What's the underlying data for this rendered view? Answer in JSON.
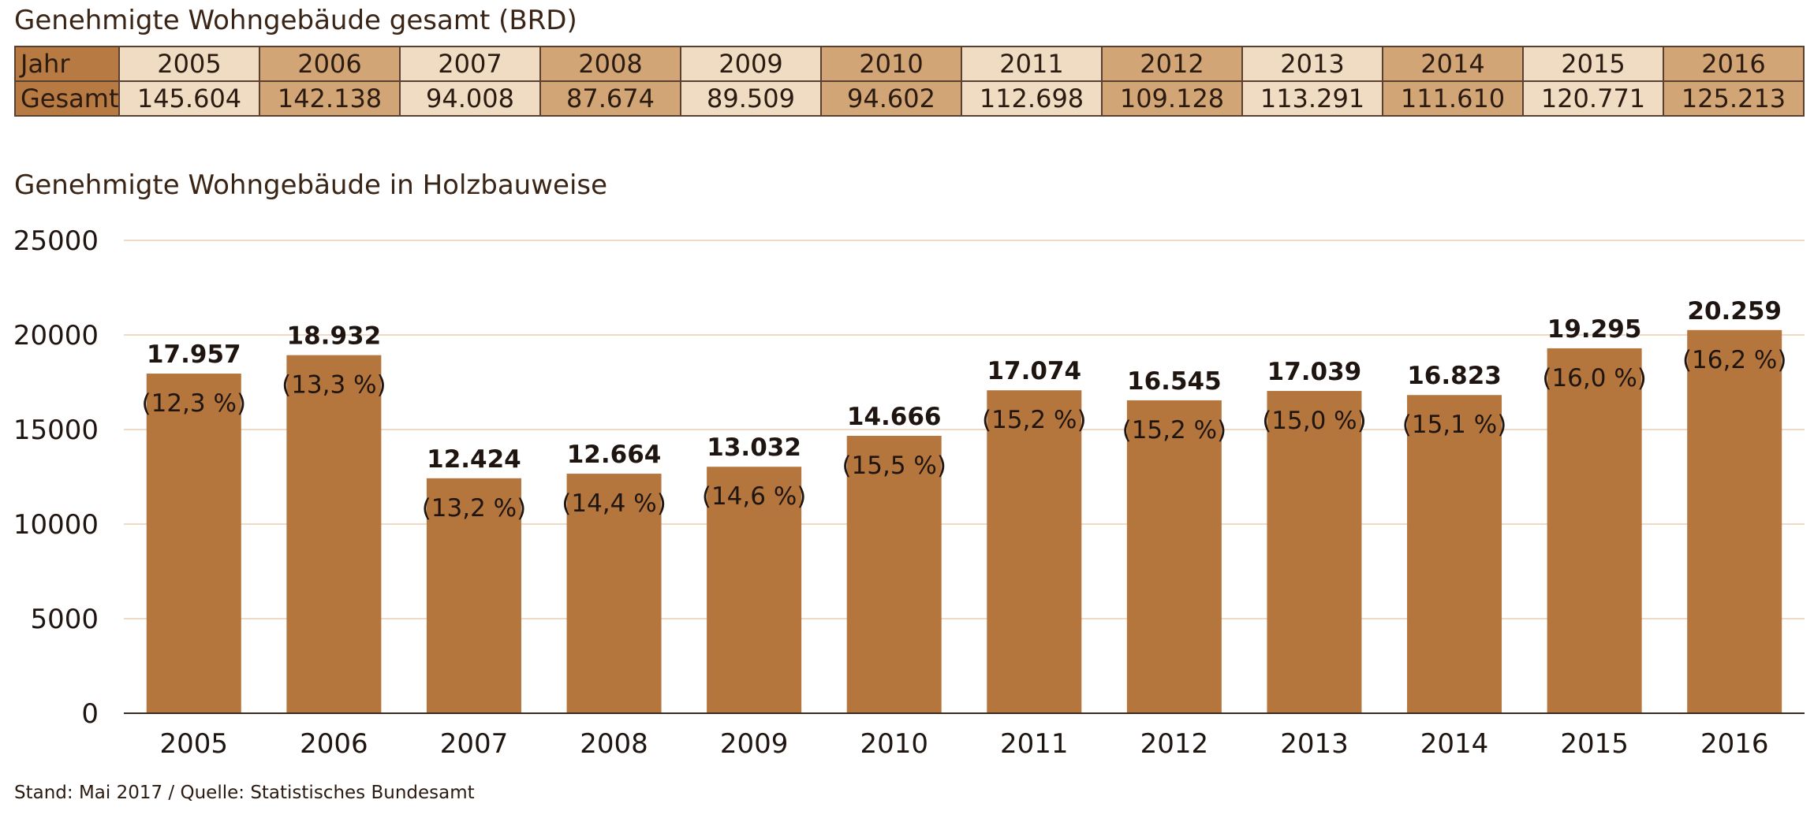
{
  "table": {
    "title": "Genehmigte Wohngebäude gesamt (BRD)",
    "row_header_year": "Jahr",
    "row_header_total": "Gesamt",
    "years": [
      "2005",
      "2006",
      "2007",
      "2008",
      "2009",
      "2010",
      "2011",
      "2012",
      "2013",
      "2014",
      "2015",
      "2016"
    ],
    "totals": [
      "145.604",
      "142.138",
      "94.008",
      "87.674",
      "89.509",
      "94.602",
      "112.698",
      "109.128",
      "113.291",
      "111.610",
      "120.771",
      "125.213"
    ]
  },
  "colors": {
    "bar": "#b5763e",
    "grid": "#efd9c7",
    "header_cell": "#b77a43",
    "light_cell": "#efdcc2",
    "dark_cell": "#d2a577"
  },
  "chart_data": {
    "type": "bar",
    "title": "Genehmigte Wohngebäude in Holzbauweise",
    "xlabel": "",
    "ylabel": "",
    "categories": [
      "2005",
      "2006",
      "2007",
      "2008",
      "2009",
      "2010",
      "2011",
      "2012",
      "2013",
      "2014",
      "2015",
      "2016"
    ],
    "values": [
      17957,
      18932,
      12424,
      12664,
      13032,
      14666,
      17074,
      16545,
      17039,
      16823,
      19295,
      20259
    ],
    "value_labels": [
      "17.957",
      "18.932",
      "12.424",
      "12.664",
      "13.032",
      "14.666",
      "17.074",
      "16.545",
      "17.039",
      "16.823",
      "19.295",
      "20.259"
    ],
    "percent_labels": [
      "(12,3 %)",
      "(13,3 %)",
      "(13,2 %)",
      "(14,4 %)",
      "(14,6 %)",
      "(15,5 %)",
      "(15,2 %)",
      "(15,2 %)",
      "(15,0 %)",
      "(15,1 %)",
      "(16,0 %)",
      "(16,2 %)"
    ],
    "yticks": [
      0,
      5000,
      10000,
      15000,
      20000,
      25000
    ],
    "ylim": [
      0,
      25000
    ],
    "grid": true,
    "legend": "none"
  },
  "footer": "Stand: Mai 2017 / Quelle: Statistisches Bundesamt"
}
